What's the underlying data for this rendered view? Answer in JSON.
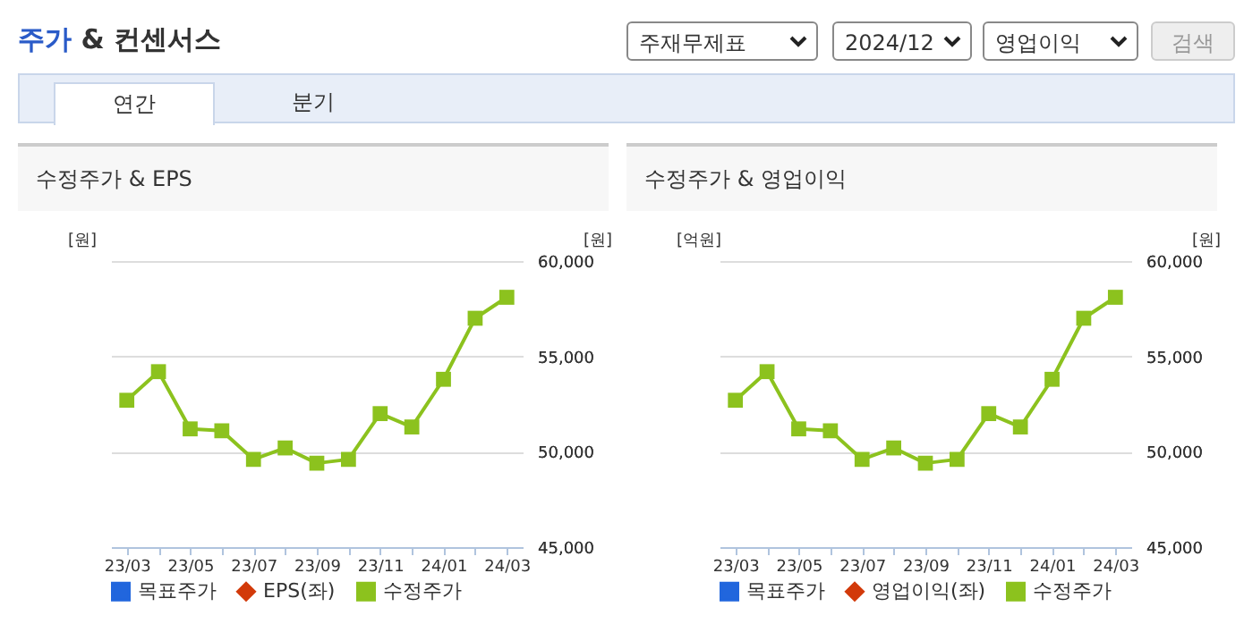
{
  "chart_data": [
    {
      "type": "other",
      "title": "주가 & 컨센서스",
      "annotations": [
        "주재무제표",
        "2024/12",
        "영업이익",
        "검색",
        "연간",
        "분기"
      ]
    },
    {
      "type": "line",
      "title": "수정주가 & EPS",
      "ylabel": "[원]",
      "y2label": "[원]",
      "categories": [
        "23/03",
        null,
        "23/05",
        null,
        "23/07",
        null,
        "23/09",
        null,
        "23/11",
        null,
        "24/01",
        null,
        "24/03"
      ],
      "series": [
        {
          "name": "목표주가",
          "type": "bar",
          "color": "#2166dd",
          "axis": "y",
          "values": [
            null,
            null,
            null,
            null,
            null,
            null,
            null,
            null,
            null,
            null,
            null,
            null,
            null
          ]
        },
        {
          "name": "EPS(좌)",
          "type": "line",
          "marker": "diamond",
          "color": "#d23a0a",
          "axis": "y",
          "values": [
            null,
            null,
            null,
            null,
            null,
            null,
            null,
            null,
            null,
            null,
            null,
            null,
            null
          ]
        },
        {
          "name": "수정주가",
          "type": "line",
          "marker": "square",
          "color": "#8cc21e",
          "axis": "y2",
          "values": [
            52700,
            54200,
            51200,
            51100,
            49600,
            50200,
            49400,
            49600,
            52000,
            51300,
            53800,
            57000,
            58100
          ]
        }
      ],
      "y2lim": [
        45000,
        60000
      ],
      "y2ticks": [
        {
          "value": 45000,
          "label": "45,000"
        },
        {
          "value": 50000,
          "label": "50,000"
        },
        {
          "value": 55000,
          "label": "55,000"
        },
        {
          "value": 60000,
          "label": "60,000"
        }
      ],
      "grid": "y",
      "legend": "bottom"
    },
    {
      "type": "line",
      "title": "수정주가 & 영업이익",
      "ylabel": "[억원]",
      "y2label": "[원]",
      "categories": [
        "23/03",
        null,
        "23/05",
        null,
        "23/07",
        null,
        "23/09",
        null,
        "23/11",
        null,
        "24/01",
        null,
        "24/03"
      ],
      "series": [
        {
          "name": "목표주가",
          "type": "bar",
          "color": "#2166dd",
          "axis": "y",
          "values": [
            null,
            null,
            null,
            null,
            null,
            null,
            null,
            null,
            null,
            null,
            null,
            null,
            null
          ]
        },
        {
          "name": "영업이익(좌)",
          "type": "line",
          "marker": "diamond",
          "color": "#d23a0a",
          "axis": "y",
          "values": [
            null,
            null,
            null,
            null,
            null,
            null,
            null,
            null,
            null,
            null,
            null,
            null,
            null
          ]
        },
        {
          "name": "수정주가",
          "type": "line",
          "marker": "square",
          "color": "#8cc21e",
          "axis": "y2",
          "values": [
            52700,
            54200,
            51200,
            51100,
            49600,
            50200,
            49400,
            49600,
            52000,
            51300,
            53800,
            57000,
            58100
          ]
        }
      ],
      "y2lim": [
        45000,
        60000
      ],
      "y2ticks": [
        {
          "value": 45000,
          "label": "45,000"
        },
        {
          "value": 50000,
          "label": "50,000"
        },
        {
          "value": 55000,
          "label": "55,000"
        },
        {
          "value": 60000,
          "label": "60,000"
        }
      ],
      "grid": "y",
      "legend": "bottom"
    }
  ]
}
